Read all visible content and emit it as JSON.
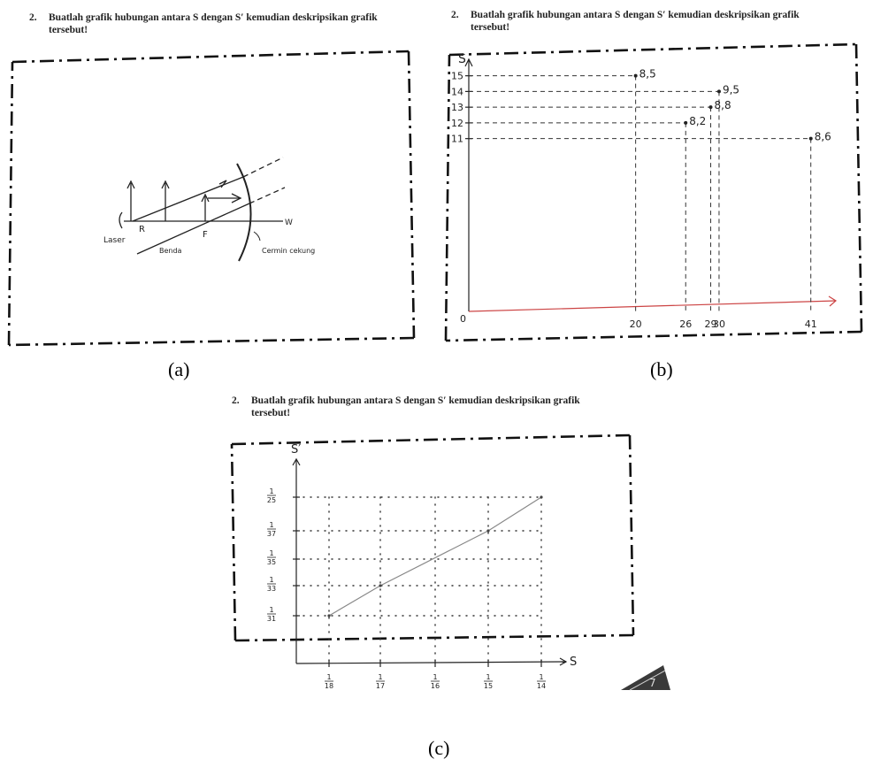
{
  "panels": [
    {
      "id": "a",
      "caption": "(a)",
      "question": {
        "number": "2.",
        "line1": "Buatlah grafik hubungan antara S  dengan S′ kemudian deskripsikan grafik",
        "line2": "tersebut!"
      },
      "sketch_labels": {
        "laser": "Laser",
        "r": "R",
        "benda": "Benda",
        "f": "F",
        "cermin": "Cermin cekung",
        "w": "W"
      }
    },
    {
      "id": "b",
      "caption": "(b)",
      "question": {
        "number": "2.",
        "line1": "Buatlah grafik hubungan antara S  dengan S′ kemudian deskripsikan grafik",
        "line2": "tersebut!"
      }
    },
    {
      "id": "c",
      "caption": "(c)",
      "question": {
        "number": "2.",
        "line1": "Buatlah grafik hubungan antara S  dengan S′ kemudian deskripsikan grafik",
        "line2": "tersebut!"
      },
      "corner_page_number": "7"
    }
  ],
  "chart_data": [
    {
      "type": "scatter",
      "panel": "b",
      "ylabel": "S",
      "origin_label": "0",
      "x_ticks": [
        20,
        26,
        29,
        30,
        41
      ],
      "y_ticks": [
        11,
        12,
        13,
        14,
        15
      ],
      "x_tick_labels": [
        "20",
        "26",
        "29",
        "30",
        "41"
      ],
      "y_tick_labels": [
        "11",
        "12",
        "13",
        "14",
        "15"
      ],
      "points": [
        {
          "x": 20,
          "y": 15,
          "label": "8,5"
        },
        {
          "x": 26,
          "y": 12,
          "label": "8,2"
        },
        {
          "x": 29,
          "y": 13,
          "label": "8,8"
        },
        {
          "x": 30,
          "y": 14,
          "label": "9,5"
        },
        {
          "x": 41,
          "y": 11,
          "label": "8,6"
        }
      ],
      "xlim": [
        0,
        44
      ],
      "ylim": [
        0,
        15.6
      ],
      "grid": "dashed guide lines to axes"
    },
    {
      "type": "line",
      "panel": "c",
      "xlabel": "S",
      "ylabel": "S′",
      "x_tick_labels": [
        "1/18",
        "1/17",
        "1/16",
        "1/15",
        "1/14"
      ],
      "y_tick_labels": [
        "1/31",
        "1/33",
        "1/35",
        "1/37",
        "1/25"
      ],
      "points": [
        {
          "x": "1/18",
          "y": "1/31"
        },
        {
          "x": "1/17",
          "y": "1/33"
        },
        {
          "x": "1/15",
          "y": "1/37"
        },
        {
          "x": "1/14",
          "y": "1/25"
        }
      ],
      "grid": "dotted guide lines to axes"
    }
  ]
}
